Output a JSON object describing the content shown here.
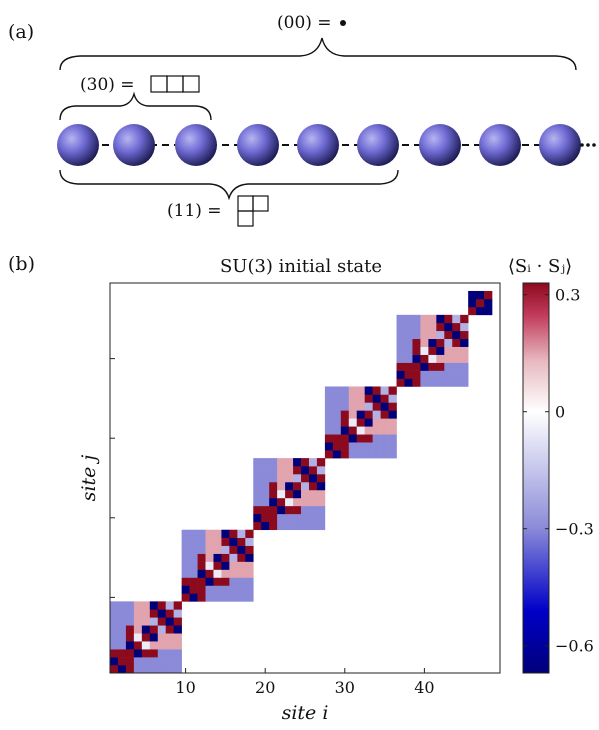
{
  "panel_a": {
    "label": "(a)",
    "labels": {
      "top": "(00) =",
      "left": "(30) =",
      "bottom": "(11) ="
    }
  },
  "panel_b": {
    "label": "(b)",
    "title": "SU(3) initial state",
    "xlabel": "site i",
    "ylabel": "site j",
    "colorbar_label": "⟨Sᵢ · Sⱼ⟩"
  },
  "chart_data": {
    "type": "heatmap",
    "title": "SU(3) initial state",
    "xlabel": "site i",
    "ylabel": "site j",
    "n_sites": 49,
    "xlim": [
      0.5,
      49.5
    ],
    "ylim": [
      0.5,
      49.5
    ],
    "x_ticks": [
      10,
      20,
      30,
      40
    ],
    "color_range": [
      -0.67,
      0.33
    ],
    "colorbar_ticks": [
      {
        "value": 0.3,
        "label": "0.3"
      },
      {
        "value": 0,
        "label": "0"
      },
      {
        "value": -0.3,
        "label": "−0.3"
      },
      {
        "value": -0.6,
        "label": "−0.6"
      }
    ],
    "blocks": [
      {
        "start": 1,
        "size": 9
      },
      {
        "start": 10,
        "size": 9
      },
      {
        "start": 19,
        "size": 9
      },
      {
        "start": 28,
        "size": 9
      },
      {
        "start": 37,
        "size": 9
      },
      {
        "start": 46,
        "size": 3
      }
    ],
    "block_pattern": [
      [
        0.33,
        -0.67,
        0.33,
        -0.3,
        -0.3,
        -0.3,
        -0.3,
        -0.3,
        -0.3
      ],
      [
        -0.67,
        0.33,
        0.33,
        -0.3,
        -0.3,
        -0.3,
        -0.3,
        -0.3,
        -0.3
      ],
      [
        0.33,
        0.33,
        0.33,
        -0.67,
        0.33,
        0.33,
        -0.3,
        -0.3,
        -0.3
      ],
      [
        -0.3,
        -0.3,
        -0.67,
        0.33,
        -0.05,
        0.15,
        0.15,
        0.15,
        0.15
      ],
      [
        -0.3,
        -0.3,
        0.33,
        -0.05,
        0.33,
        -0.67,
        0.15,
        0.15,
        0.15
      ],
      [
        -0.3,
        -0.3,
        0.33,
        0.15,
        -0.67,
        0.33,
        -0.2,
        0.33,
        -0.67
      ],
      [
        -0.3,
        -0.3,
        -0.3,
        0.15,
        0.15,
        -0.2,
        0.33,
        -0.67,
        0.33
      ],
      [
        -0.3,
        -0.3,
        -0.3,
        0.15,
        0.15,
        0.33,
        -0.67,
        0.33,
        -0.2
      ],
      [
        -0.3,
        -0.3,
        -0.3,
        0.15,
        0.15,
        -0.67,
        0.33,
        -0.2,
        0.33
      ]
    ],
    "final_block_pattern": [
      [
        0.33,
        -0.67,
        -0.67
      ],
      [
        -0.67,
        0.33,
        -0.67
      ],
      [
        -0.67,
        -0.67,
        0.33
      ]
    ],
    "colormap": [
      "#00007a",
      "#0000c8",
      "#8a8ad8",
      "#ffffff",
      "#e7b9c0",
      "#c0395a",
      "#8c0a1e"
    ]
  }
}
